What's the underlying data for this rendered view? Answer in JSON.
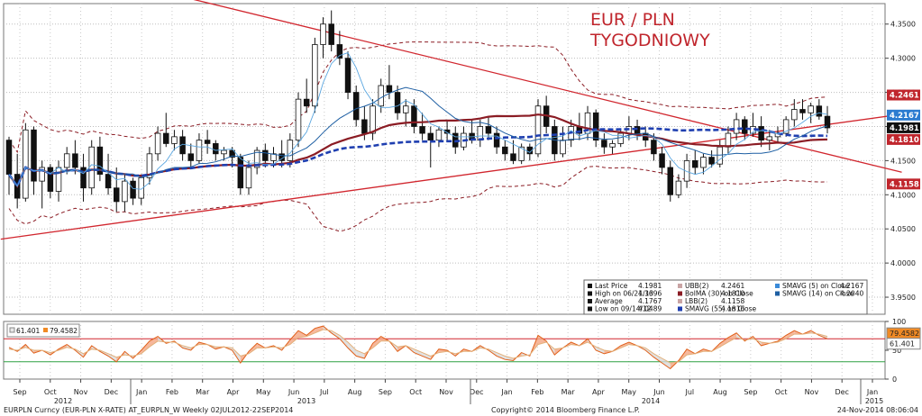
{
  "chart_data": {
    "type": "candlestick",
    "title": "EUR / PLN",
    "subtitle": "TYGODNIOWY",
    "x_ticks": {
      "months": [
        "Sep",
        "Oct",
        "Nov",
        "Dec",
        "Jan",
        "Feb",
        "Mar",
        "Apr",
        "May",
        "Jun",
        "Jul",
        "Aug",
        "Sep",
        "Oct",
        "Nov",
        "Dec",
        "Jan",
        "Feb",
        "Mar",
        "Apr",
        "May",
        "Jun",
        "Jul",
        "Aug",
        "Sep",
        "Oct",
        "Nov",
        "Dec",
        "Jan"
      ],
      "years": [
        "2012",
        "2013",
        "2014",
        "2015"
      ]
    },
    "y_ticks": [
      "4.3500",
      "4.3000",
      "4.2500",
      "4.2000",
      "4.1500",
      "4.1000",
      "4.0500",
      "4.0000",
      "3.9500"
    ],
    "ylim": [
      3.925,
      4.38
    ],
    "ohlc": [
      [
        4.18,
        4.185,
        4.1,
        4.13
      ],
      [
        4.13,
        4.16,
        4.08,
        4.095
      ],
      [
        4.095,
        4.205,
        4.09,
        4.195
      ],
      [
        4.195,
        4.2,
        4.1,
        4.12
      ],
      [
        4.12,
        4.15,
        4.08,
        4.14
      ],
      [
        4.14,
        4.145,
        4.095,
        4.105
      ],
      [
        4.105,
        4.15,
        4.09,
        4.14
      ],
      [
        4.14,
        4.17,
        4.13,
        4.16
      ],
      [
        4.16,
        4.18,
        4.13,
        4.14
      ],
      [
        4.14,
        4.16,
        4.09,
        4.11
      ],
      [
        4.11,
        4.18,
        4.1,
        4.17
      ],
      [
        4.17,
        4.185,
        4.12,
        4.13
      ],
      [
        4.13,
        4.16,
        4.1,
        4.11
      ],
      [
        4.11,
        4.14,
        4.075,
        4.09
      ],
      [
        4.09,
        4.13,
        4.075,
        4.12
      ],
      [
        4.12,
        4.125,
        4.085,
        4.095
      ],
      [
        4.095,
        4.13,
        4.085,
        4.125
      ],
      [
        4.125,
        4.17,
        4.115,
        4.16
      ],
      [
        4.16,
        4.2,
        4.15,
        4.19
      ],
      [
        4.19,
        4.22,
        4.17,
        4.175
      ],
      [
        4.175,
        4.195,
        4.165,
        4.185
      ],
      [
        4.185,
        4.195,
        4.15,
        4.16
      ],
      [
        4.16,
        4.175,
        4.14,
        4.15
      ],
      [
        4.15,
        4.19,
        4.145,
        4.18
      ],
      [
        4.18,
        4.195,
        4.16,
        4.175
      ],
      [
        4.175,
        4.18,
        4.15,
        4.16
      ],
      [
        4.16,
        4.17,
        4.15,
        4.165
      ],
      [
        4.165,
        4.17,
        4.14,
        4.155
      ],
      [
        4.155,
        4.16,
        4.1,
        4.11
      ],
      [
        4.11,
        4.15,
        4.1,
        4.14
      ],
      [
        4.14,
        4.17,
        4.13,
        4.165
      ],
      [
        4.165,
        4.175,
        4.14,
        4.15
      ],
      [
        4.15,
        4.17,
        4.14,
        4.16
      ],
      [
        4.16,
        4.18,
        4.14,
        4.15
      ],
      [
        4.15,
        4.19,
        4.14,
        4.18
      ],
      [
        4.18,
        4.25,
        4.17,
        4.24
      ],
      [
        4.24,
        4.27,
        4.22,
        4.23
      ],
      [
        4.23,
        4.33,
        4.22,
        4.32
      ],
      [
        4.32,
        4.36,
        4.3,
        4.35
      ],
      [
        4.35,
        4.37,
        4.31,
        4.32
      ],
      [
        4.32,
        4.34,
        4.29,
        4.3
      ],
      [
        4.3,
        4.31,
        4.24,
        4.25
      ],
      [
        4.25,
        4.26,
        4.2,
        4.21
      ],
      [
        4.21,
        4.23,
        4.18,
        4.19
      ],
      [
        4.19,
        4.24,
        4.18,
        4.23
      ],
      [
        4.23,
        4.27,
        4.22,
        4.26
      ],
      [
        4.26,
        4.29,
        4.24,
        4.25
      ],
      [
        4.25,
        4.26,
        4.21,
        4.22
      ],
      [
        4.22,
        4.24,
        4.2,
        4.23
      ],
      [
        4.23,
        4.24,
        4.19,
        4.2
      ],
      [
        4.2,
        4.22,
        4.18,
        4.19
      ],
      [
        4.19,
        4.2,
        4.14,
        4.18
      ],
      [
        4.18,
        4.2,
        4.17,
        4.195
      ],
      [
        4.195,
        4.21,
        4.18,
        4.19
      ],
      [
        4.19,
        4.2,
        4.16,
        4.17
      ],
      [
        4.17,
        4.2,
        4.165,
        4.19
      ],
      [
        4.19,
        4.21,
        4.175,
        4.18
      ],
      [
        4.18,
        4.21,
        4.17,
        4.2
      ],
      [
        4.2,
        4.215,
        4.18,
        4.19
      ],
      [
        4.19,
        4.2,
        4.16,
        4.17
      ],
      [
        4.17,
        4.18,
        4.15,
        4.16
      ],
      [
        4.16,
        4.18,
        4.145,
        4.15
      ],
      [
        4.15,
        4.175,
        4.145,
        4.17
      ],
      [
        4.17,
        4.175,
        4.15,
        4.16
      ],
      [
        4.16,
        4.24,
        4.155,
        4.23
      ],
      [
        4.23,
        4.245,
        4.19,
        4.2
      ],
      [
        4.2,
        4.21,
        4.15,
        4.16
      ],
      [
        4.16,
        4.2,
        4.155,
        4.18
      ],
      [
        4.18,
        4.21,
        4.17,
        4.2
      ],
      [
        4.2,
        4.22,
        4.18,
        4.19
      ],
      [
        4.19,
        4.23,
        4.18,
        4.22
      ],
      [
        4.22,
        4.225,
        4.17,
        4.18
      ],
      [
        4.18,
        4.19,
        4.16,
        4.17
      ],
      [
        4.17,
        4.18,
        4.16,
        4.175
      ],
      [
        4.175,
        4.195,
        4.17,
        4.19
      ],
      [
        4.19,
        4.215,
        4.18,
        4.2
      ],
      [
        4.2,
        4.21,
        4.18,
        4.19
      ],
      [
        4.19,
        4.2,
        4.17,
        4.18
      ],
      [
        4.18,
        4.19,
        4.15,
        4.16
      ],
      [
        4.16,
        4.17,
        4.13,
        4.14
      ],
      [
        4.14,
        4.15,
        4.09,
        4.1
      ],
      [
        4.1,
        4.13,
        4.095,
        4.12
      ],
      [
        4.12,
        4.16,
        4.11,
        4.15
      ],
      [
        4.15,
        4.165,
        4.13,
        4.14
      ],
      [
        4.14,
        4.16,
        4.13,
        4.155
      ],
      [
        4.155,
        4.165,
        4.14,
        4.145
      ],
      [
        4.145,
        4.18,
        4.14,
        4.17
      ],
      [
        4.17,
        4.2,
        4.16,
        4.19
      ],
      [
        4.19,
        4.22,
        4.18,
        4.21
      ],
      [
        4.21,
        4.215,
        4.18,
        4.19
      ],
      [
        4.19,
        4.22,
        4.185,
        4.2
      ],
      [
        4.2,
        4.215,
        4.17,
        4.18
      ],
      [
        4.18,
        4.195,
        4.165,
        4.185
      ],
      [
        4.185,
        4.2,
        4.175,
        4.19
      ],
      [
        4.19,
        4.215,
        4.185,
        4.21
      ],
      [
        4.21,
        4.24,
        4.2,
        4.225
      ],
      [
        4.225,
        4.24,
        4.21,
        4.22
      ],
      [
        4.22,
        4.235,
        4.205,
        4.23
      ],
      [
        4.23,
        4.24,
        4.21,
        4.215
      ],
      [
        4.215,
        4.23,
        4.19,
        4.198
      ]
    ],
    "legend": [
      [
        "Last Price",
        "4.1981",
        "UBB(2)",
        "4.2461",
        "SMAVG (5) on Close",
        "4.2167"
      ],
      [
        "High on 06/21/13",
        "4.3696",
        "BolMA (30) on Close",
        "4.1810",
        "SMAVG (14) on Close",
        "4.2040"
      ],
      [
        "Average",
        "4.1767",
        "LBB(2)",
        "4.1158",
        "",
        ""
      ],
      [
        "Low on 09/14/12",
        "4.0489",
        "SMAVG (55) on Close",
        "4.1816",
        "",
        ""
      ]
    ],
    "right_tags": [
      {
        "label": "4.2461",
        "value": 4.2461,
        "color": "#c0262d"
      },
      {
        "label": "4.2167",
        "value": 4.2167,
        "color": "#2b7bd0"
      },
      {
        "label": "4.1981",
        "value": 4.1981,
        "color": "#111111"
      },
      {
        "label": "4.1810",
        "value": 4.181,
        "color": "#c0262d"
      },
      {
        "label": "4.1158",
        "value": 4.1158,
        "color": "#c0262d"
      }
    ],
    "oscillator": {
      "y_ticks": [
        "100",
        "50",
        "0"
      ],
      "ylim": [
        0,
        100
      ],
      "upper_level": 70,
      "lower_level": 30,
      "values": [
        [
          55,
          52
        ],
        [
          48,
          50
        ],
        [
          60,
          55
        ],
        [
          45,
          50
        ],
        [
          50,
          50
        ],
        [
          42,
          46
        ],
        [
          52,
          50
        ],
        [
          60,
          55
        ],
        [
          50,
          52
        ],
        [
          38,
          44
        ],
        [
          58,
          52
        ],
        [
          48,
          50
        ],
        [
          40,
          44
        ],
        [
          30,
          38
        ],
        [
          48,
          42
        ],
        [
          36,
          40
        ],
        [
          50,
          44
        ],
        [
          66,
          56
        ],
        [
          74,
          66
        ],
        [
          62,
          64
        ],
        [
          66,
          64
        ],
        [
          54,
          58
        ],
        [
          50,
          54
        ],
        [
          64,
          60
        ],
        [
          60,
          60
        ],
        [
          52,
          56
        ],
        [
          56,
          56
        ],
        [
          50,
          54
        ],
        [
          28,
          40
        ],
        [
          48,
          44
        ],
        [
          62,
          54
        ],
        [
          54,
          54
        ],
        [
          58,
          56
        ],
        [
          50,
          54
        ],
        [
          68,
          60
        ],
        [
          84,
          72
        ],
        [
          76,
          74
        ],
        [
          88,
          80
        ],
        [
          92,
          86
        ],
        [
          80,
          84
        ],
        [
          70,
          76
        ],
        [
          54,
          64
        ],
        [
          40,
          50
        ],
        [
          36,
          44
        ],
        [
          62,
          54
        ],
        [
          74,
          66
        ],
        [
          66,
          66
        ],
        [
          48,
          56
        ],
        [
          58,
          58
        ],
        [
          46,
          52
        ],
        [
          40,
          46
        ],
        [
          34,
          40
        ],
        [
          52,
          46
        ],
        [
          50,
          48
        ],
        [
          40,
          44
        ],
        [
          52,
          48
        ],
        [
          48,
          48
        ],
        [
          58,
          54
        ],
        [
          50,
          52
        ],
        [
          40,
          46
        ],
        [
          34,
          40
        ],
        [
          32,
          36
        ],
        [
          46,
          40
        ],
        [
          40,
          42
        ],
        [
          76,
          60
        ],
        [
          66,
          64
        ],
        [
          42,
          52
        ],
        [
          54,
          54
        ],
        [
          64,
          60
        ],
        [
          58,
          58
        ],
        [
          70,
          64
        ],
        [
          50,
          56
        ],
        [
          44,
          50
        ],
        [
          48,
          48
        ],
        [
          58,
          54
        ],
        [
          64,
          60
        ],
        [
          58,
          58
        ],
        [
          50,
          54
        ],
        [
          38,
          44
        ],
        [
          28,
          36
        ],
        [
          18,
          28
        ],
        [
          32,
          30
        ],
        [
          52,
          42
        ],
        [
          44,
          44
        ],
        [
          52,
          48
        ],
        [
          48,
          48
        ],
        [
          62,
          56
        ],
        [
          72,
          64
        ],
        [
          80,
          72
        ],
        [
          66,
          68
        ],
        [
          74,
          70
        ],
        [
          58,
          64
        ],
        [
          62,
          62
        ],
        [
          66,
          64
        ],
        [
          76,
          70
        ],
        [
          84,
          78
        ],
        [
          78,
          78
        ],
        [
          84,
          80
        ],
        [
          76,
          78
        ],
        [
          70,
          74
        ]
      ]
    },
    "osc_tags": [
      {
        "label": "79.4582",
        "value": 79.4582,
        "color": "#f08a24"
      },
      {
        "label": "61.401",
        "value": 61.401,
        "color": "#ffffff"
      }
    ],
    "osc_legend": [
      "61.401",
      "79.4582"
    ],
    "footer_left": "EURPLN Curncy (EUR-PLN X-RATE) AT_EURPLN_W  Weekly 02JUL2012-22SEP2014",
    "footer_center": "Copyright© 2014 Bloomberg Finance L.P.",
    "footer_right": "24-Nov-2014 08:06:04"
  }
}
